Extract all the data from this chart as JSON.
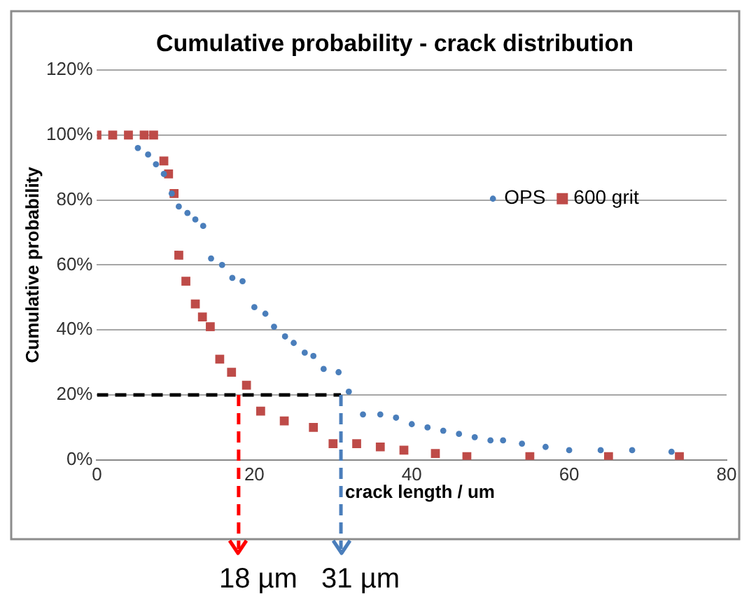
{
  "chart_data": {
    "type": "scatter",
    "title": "Cumulative probability - crack distribution",
    "xlabel": "crack length / um",
    "ylabel": "Cumulative probability",
    "xlim": [
      0,
      80
    ],
    "xticks": [
      0,
      20,
      40,
      60,
      80
    ],
    "ylim": [
      0,
      120
    ],
    "yticks": [
      {
        "value": 0,
        "label": "0%"
      },
      {
        "value": 20,
        "label": "20%"
      },
      {
        "value": 40,
        "label": "40%"
      },
      {
        "value": 60,
        "label": "60%"
      },
      {
        "value": 80,
        "label": "80%"
      },
      {
        "value": 100,
        "label": "100%"
      },
      {
        "value": 120,
        "label": "120%"
      }
    ],
    "grid": "y",
    "legend": "right",
    "series": [
      {
        "name": "OPS",
        "color": "#4a7ebb",
        "marker": "circle",
        "x": [
          5.2,
          6.5,
          7.5,
          8.5,
          9.5,
          10.4,
          11.5,
          12.5,
          13.5,
          14.5,
          15.9,
          17.2,
          18.5,
          20,
          21.4,
          22.5,
          23.9,
          25,
          26.4,
          27.5,
          28.8,
          30.7,
          32,
          33.8,
          36,
          38,
          40,
          42,
          44,
          46,
          48,
          50,
          51.6,
          54,
          57,
          60,
          64,
          68,
          73
        ],
        "values": [
          96,
          94,
          91,
          88,
          82,
          78,
          76,
          74,
          72,
          62,
          60,
          56,
          55,
          47,
          45,
          41,
          38,
          36,
          33,
          32,
          28,
          27,
          21,
          14,
          14,
          13,
          11,
          10,
          9,
          8,
          7,
          6,
          6,
          5,
          4,
          3,
          3,
          3,
          2.5
        ]
      },
      {
        "name": "600 grit",
        "color": "#be4b48",
        "marker": "square",
        "x": [
          0,
          2,
          4,
          6,
          7.2,
          8.5,
          9.1,
          9.8,
          10.4,
          11.3,
          12.5,
          13.4,
          14.4,
          15.6,
          17.1,
          19,
          20.8,
          23.8,
          27.5,
          30,
          33,
          36,
          39,
          43,
          47,
          55,
          65,
          74
        ],
        "values": [
          100,
          100,
          100,
          100,
          100,
          92,
          88,
          82,
          63,
          55,
          48,
          44,
          41,
          31,
          27,
          23,
          15,
          12,
          10,
          5,
          5,
          4,
          3,
          2,
          1,
          1,
          1,
          1
        ]
      },
      {
        "type": "line",
        "color": "#000000",
        "line_style": "dashed",
        "x": [
          0,
          31
        ],
        "values": [
          20,
          20
        ]
      }
    ],
    "ref_lines": [
      {
        "axis": "x",
        "value": 18,
        "label": "18 µm",
        "color": "#ff0000",
        "line_style": "dashed"
      },
      {
        "axis": "x",
        "value": 31,
        "label": "31 µm",
        "color": "#4a7ebb",
        "line_style": "dashed"
      }
    ]
  }
}
